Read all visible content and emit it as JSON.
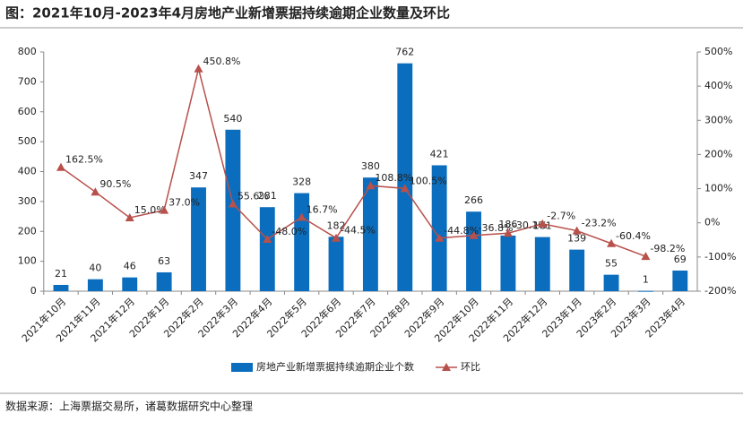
{
  "chart_data": {
    "type": "bar",
    "title": "图：2021年10月-2023年4月房地产业新增票据持续逾期企业数量及环比",
    "source": "数据来源：上海票据交易所，诸葛数据研究中心整理",
    "categories": [
      "2021年10月",
      "2021年11月",
      "2021年12月",
      "2022年1月",
      "2022年2月",
      "2022年3月",
      "2022年4月",
      "2022年5月",
      "2022年6月",
      "2022年7月",
      "2022年8月",
      "2022年9月",
      "2022年10月",
      "2022年11月",
      "2022年12月",
      "2023年1月",
      "2023年2月",
      "2023年3月",
      "2023年4月"
    ],
    "series": [
      {
        "name": "房地产业新增票据持续逾期企业个数",
        "type": "bar",
        "color": "#0b6dbd",
        "values": [
          21,
          40,
          46,
          63,
          347,
          540,
          281,
          328,
          182,
          380,
          762,
          421,
          266,
          186,
          181,
          139,
          55,
          1,
          69
        ]
      },
      {
        "name": "环比",
        "type": "line",
        "axis": "y2",
        "color": "#b8504b",
        "values": [
          162.5,
          90.5,
          15.0,
          37.0,
          450.8,
          55.6,
          -48.0,
          16.7,
          -44.5,
          108.8,
          100.5,
          -44.8,
          -36.8,
          -30.1,
          -2.7,
          -23.2,
          -60.4,
          -98.2,
          null
        ],
        "value_labels": [
          "162.5%",
          "90.5%",
          "15.0%",
          "37.0%",
          "450.8%",
          "55.6%",
          "-48.0%",
          "16.7%",
          "-44.5%",
          "108.8%",
          "100.5%",
          "-44.8%",
          "-36.8%",
          "-30.1%",
          "-2.7%",
          "-23.2%",
          "-60.4%",
          "-98.2%",
          null
        ]
      }
    ],
    "ylim": [
      0,
      800
    ],
    "yticks": [
      0,
      100,
      200,
      300,
      400,
      500,
      600,
      700,
      800
    ],
    "y2lim": [
      -200,
      500
    ],
    "y2ticks": [
      {
        "value": -200,
        "label": "-200%"
      },
      {
        "value": -100,
        "label": "-100%"
      },
      {
        "value": 0,
        "label": "0%"
      },
      {
        "value": 100,
        "label": "100%"
      },
      {
        "value": 200,
        "label": "200%"
      },
      {
        "value": 300,
        "label": "300%"
      },
      {
        "value": 400,
        "label": "400%"
      },
      {
        "value": 500,
        "label": "500%"
      }
    ],
    "legend": "bottom"
  }
}
